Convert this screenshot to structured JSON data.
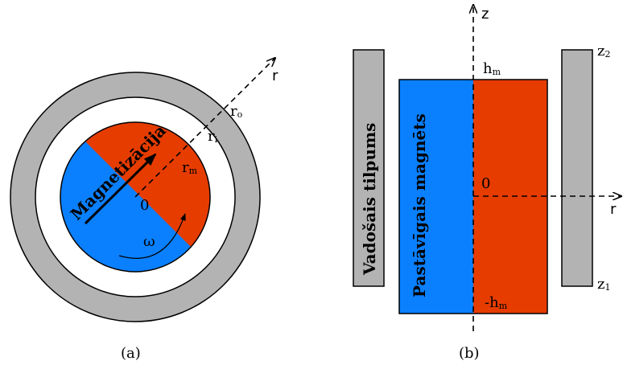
{
  "colors": {
    "north": "#e63c00",
    "south": "#0a80ff",
    "conductor": "#b3b3b3",
    "outline": "#000000"
  },
  "panel_a": {
    "caption": "(a)",
    "magnetization_label": "Magnetizācija",
    "origin": "0",
    "omega": "ω",
    "axis_r": "r",
    "r_o": {
      "base": "r",
      "sub": "o"
    },
    "r_i": {
      "base": "r",
      "sub": "i"
    },
    "r_m": {
      "base": "r",
      "sub": "m"
    }
  },
  "panel_b": {
    "caption": "(b)",
    "conducting_volume_label": "Vadošais tilpums",
    "permanent_magnet_label": "Pastāvīgais magnēts",
    "axis_z": "z",
    "axis_r": "r",
    "origin": "0",
    "h_m": {
      "base": "h",
      "sub": "m"
    },
    "neg_h_m": {
      "base": "-h",
      "sub": "m"
    },
    "z2": {
      "base": "z",
      "sub": "2"
    },
    "z1": {
      "base": "z",
      "sub": "1"
    }
  }
}
